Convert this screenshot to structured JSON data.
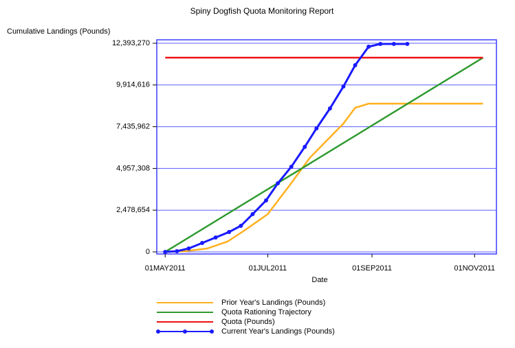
{
  "chart_data": {
    "type": "line",
    "title": "Spiny Dogfish Quota Monitoring Report",
    "y_label": "Cumulative Landings (Pounds)",
    "x_label": "Date",
    "xlim": [
      "2011-04-26",
      "2011-11-14"
    ],
    "xticks": [
      {
        "value": "2011-05-01",
        "label": "01MAY2011"
      },
      {
        "value": "2011-07-01",
        "label": "01JUL2011"
      },
      {
        "value": "2011-09-01",
        "label": "01SEP2011"
      },
      {
        "value": "2011-11-01",
        "label": "01NOV2011"
      }
    ],
    "ylim": [
      0,
      12393270
    ],
    "yticks": [
      {
        "value": 0,
        "label": "0"
      },
      {
        "value": 2478654,
        "label": "2,478,654"
      },
      {
        "value": 4957308,
        "label": "4,957,308"
      },
      {
        "value": 7435962,
        "label": "7,435,962"
      },
      {
        "value": 9914616,
        "label": "9,914,616"
      },
      {
        "value": 12393270,
        "label": "12,393,270"
      }
    ],
    "grid": true,
    "legend": "bottom",
    "series": [
      {
        "name": "Prior Year's Landings (Pounds)",
        "color": "#ffb01e",
        "markers": false,
        "x": [
          "2011-05-01",
          "2011-05-13",
          "2011-05-26",
          "2011-06-07",
          "2011-06-17",
          "2011-07-01",
          "2011-07-14",
          "2011-07-26",
          "2011-08-07",
          "2011-08-15",
          "2011-08-22",
          "2011-08-30",
          "2011-09-09",
          "2011-11-06"
        ],
        "values": [
          0,
          40000,
          204000,
          612000,
          1264000,
          2242000,
          3954000,
          5585000,
          6808000,
          7623000,
          8561000,
          8806000,
          8806000,
          8806000
        ]
      },
      {
        "name": "Quota Rationing Trajectory",
        "color": "#2e9a2e",
        "markers": false,
        "x": [
          "2011-05-01",
          "2011-11-06"
        ],
        "values": [
          0,
          11537000
        ]
      },
      {
        "name": "Quota (Pounds)",
        "color": "#ee1111",
        "markers": false,
        "x": [
          "2011-05-01",
          "2011-11-06"
        ],
        "values": [
          11537000,
          11537000
        ]
      },
      {
        "name": "Current Year's Landings (Pounds)",
        "color": "#1a1aff",
        "markers": true,
        "x": [
          "2011-05-01",
          "2011-05-08",
          "2011-05-15",
          "2011-05-23",
          "2011-05-31",
          "2011-06-08",
          "2011-06-15",
          "2011-06-22",
          "2011-06-30",
          "2011-07-07",
          "2011-07-15",
          "2011-07-23",
          "2011-07-30",
          "2011-08-07",
          "2011-08-15",
          "2011-08-22",
          "2011-08-30",
          "2011-09-06",
          "2011-09-14",
          "2011-09-22"
        ],
        "values": [
          0,
          40000,
          204000,
          530000,
          856000,
          1182000,
          1549000,
          2242000,
          3058000,
          4077000,
          5055000,
          6237000,
          7338000,
          8520000,
          9825000,
          11089000,
          12189000,
          12352000,
          12352000,
          12352000
        ]
      }
    ]
  }
}
